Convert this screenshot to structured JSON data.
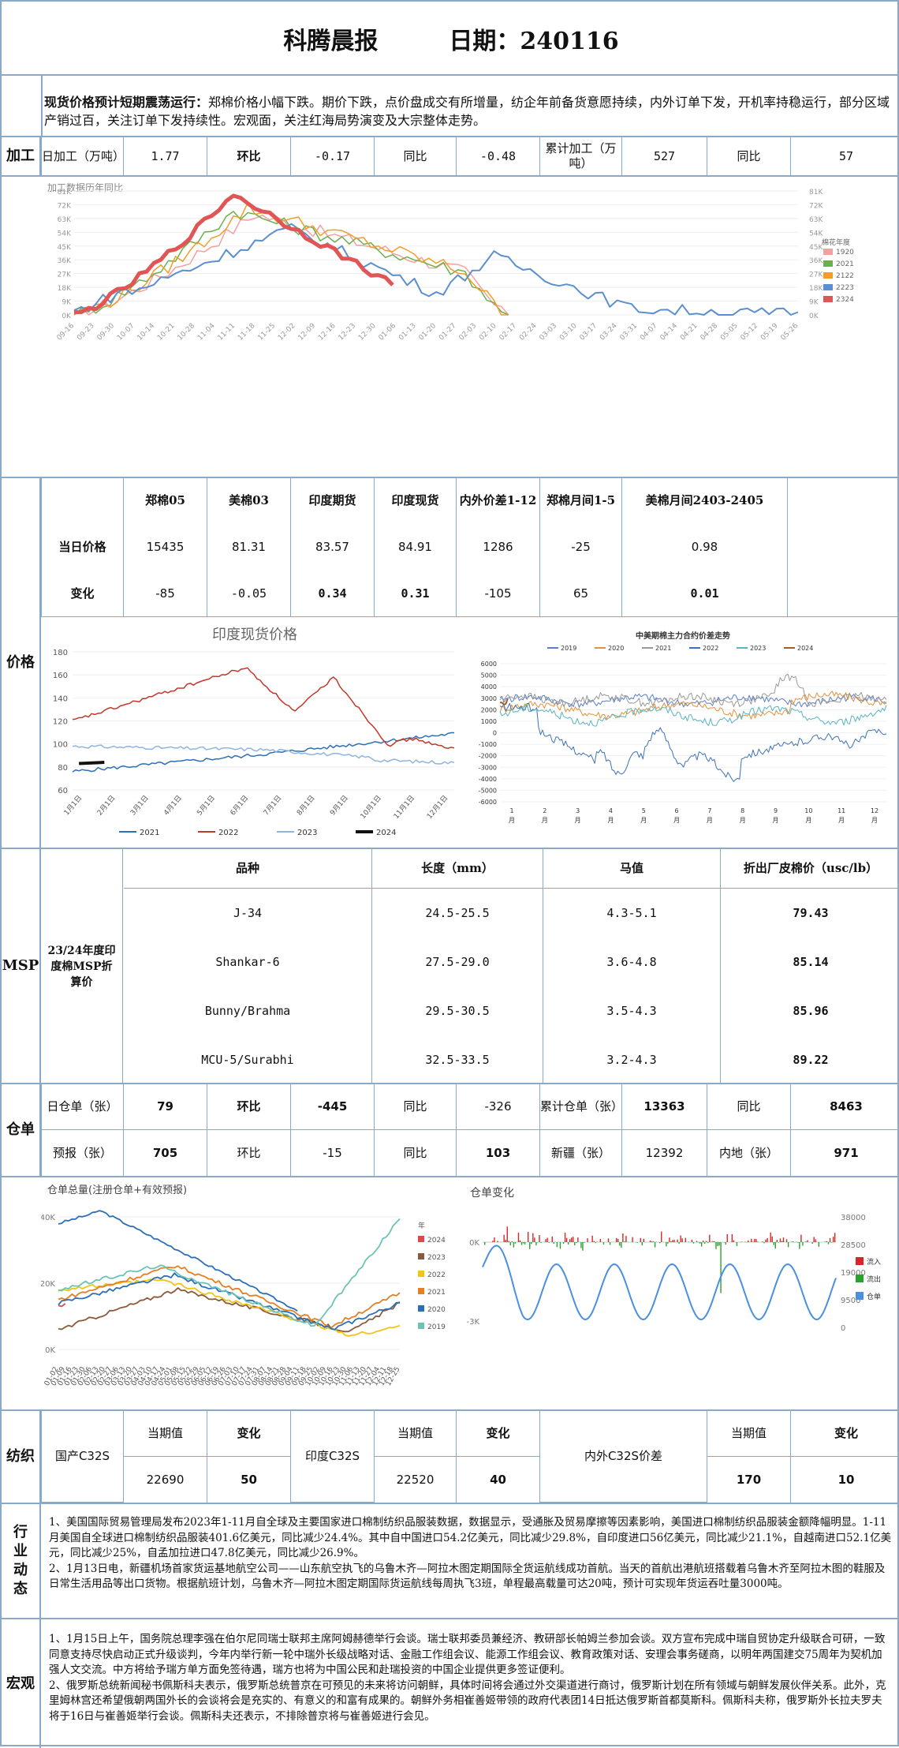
{
  "report": {
    "title": "科腾晨报",
    "date_label": "日期：240116"
  },
  "summary": {
    "bold": "现货价格预计短期震荡运行：",
    "text": "郑棉价格小幅下跌。期价下跌，点价盘成交有所增量，纺企年前备货意愿持续，内外订单下发，开机率持稳运行，部分区域产销过百，关注订单下发持续性。宏观面，关注红海局势演变及大宗整体走势。"
  },
  "processing": {
    "section": "加工",
    "daily_label": "日加工（万吨）",
    "daily_value": "1.77",
    "mom_label": "环比",
    "mom_value": "-0.17",
    "yoy_label": "同比",
    "yoy_value": "-0.48",
    "cum_label": "累计加工（万吨）",
    "cum_value": "527",
    "cum_yoy_label": "同比",
    "cum_yoy_value": "57"
  },
  "processing_chart": {
    "title": "加工数据历年同比",
    "legend_title": "棉花年度",
    "series": [
      {
        "name": "1920",
        "color": "#f4a0a0"
      },
      {
        "name": "2021",
        "color": "#6ab04c"
      },
      {
        "name": "2122",
        "color": "#f39c2b"
      },
      {
        "name": "2223",
        "color": "#5b8fd0"
      },
      {
        "name": "2324",
        "color": "#e05555"
      }
    ],
    "y_ticks": [
      "81K",
      "72K",
      "63K",
      "54K",
      "45K",
      "36K",
      "27K",
      "18K",
      "9K",
      "0K"
    ],
    "x_ticks": [
      "09-16",
      "09-23",
      "09-30",
      "10-07",
      "10-14",
      "10-21",
      "10-28",
      "11-04",
      "11-11",
      "11-18",
      "11-25",
      "12-02",
      "12-09",
      "12-16",
      "12-23",
      "12-30",
      "01-06",
      "01-13",
      "01-20",
      "01-27",
      "02-03",
      "02-10",
      "02-17",
      "02-24",
      "03-03",
      "03-10",
      "03-17",
      "03-24",
      "03-31",
      "04-07",
      "04-14",
      "04-21",
      "04-28",
      "05-05",
      "05-12",
      "05-19",
      "05-26"
    ]
  },
  "price": {
    "section": "价格",
    "headers": [
      "郑棉05",
      "美棉03",
      "印度期货",
      "印度现货",
      "内外价差1-12",
      "郑棉月间1-5",
      "美棉月间2403-2405"
    ],
    "row1_label": "当日价格",
    "row1": [
      "15435",
      "81.31",
      "83.57",
      "84.91",
      "1286",
      "-25",
      "0.98"
    ],
    "row2_label": "变化",
    "row2": [
      "-85",
      "-0.05",
      "0.34",
      "0.31",
      "-105",
      "65",
      "0.01"
    ]
  },
  "india_chart": {
    "title": "印度现货价格",
    "y_ticks": [
      "180",
      "160",
      "140",
      "120",
      "100",
      "80",
      "60"
    ],
    "x_ticks": [
      "1月1日",
      "2月1日",
      "3月1日",
      "4月1日",
      "5月1日",
      "6月1日",
      "7月1日",
      "8月1日",
      "9月1日",
      "10月1日",
      "11月1日",
      "12月1日"
    ],
    "legend": [
      {
        "name": "2021",
        "color": "#2e6fb5"
      },
      {
        "name": "2022",
        "color": "#c0392b"
      },
      {
        "name": "2023",
        "color": "#8fb4e0"
      },
      {
        "name": "2024",
        "color": "#111111"
      }
    ]
  },
  "spread_chart": {
    "title": "中美期棉主力合约价差走势",
    "legend": [
      {
        "name": "2019",
        "color": "#5b7fc7"
      },
      {
        "name": "2020",
        "color": "#e69138"
      },
      {
        "name": "2021",
        "color": "#999999"
      },
      {
        "name": "2022",
        "color": "#3d72b8"
      },
      {
        "name": "2023",
        "color": "#58b4c4"
      },
      {
        "name": "2024",
        "color": "#a65c1e"
      }
    ],
    "y_ticks": [
      "6000",
      "5000",
      "4000",
      "3000",
      "2000",
      "1000",
      "0",
      "-1000",
      "-2000",
      "-3000",
      "-4000",
      "-5000",
      "-6000"
    ],
    "x_ticks": [
      "1月",
      "2月",
      "3月",
      "4月",
      "5月",
      "6月",
      "7月",
      "8月",
      "9月",
      "10月",
      "11月",
      "12月"
    ]
  },
  "msp": {
    "section": "MSP",
    "label": "23/24年度印度棉MSP折算价",
    "headers": [
      "品种",
      "长度（mm）",
      "马值",
      "折出厂皮棉价（usc/lb）"
    ],
    "rows": [
      [
        "J-34",
        "24.5-25.5",
        "4.3-5.1",
        "79.43"
      ],
      [
        "Shankar-6",
        "27.5-29.0",
        "3.6-4.8",
        "85.14"
      ],
      [
        "Bunny/Brahma",
        "29.5-30.5",
        "3.5-4.3",
        "85.96"
      ],
      [
        "MCU-5/Surabhi",
        "32.5-33.5",
        "3.2-4.3",
        "89.22"
      ]
    ]
  },
  "warehouse": {
    "section": "仓单",
    "r1": [
      "日仓单（张）",
      "79",
      "环比",
      "-445",
      "同比",
      "-326",
      "累计仓单（张）",
      "13363",
      "同比",
      "8463"
    ],
    "r2": [
      "预报（张）",
      "705",
      "环比",
      "-15",
      "同比",
      "103",
      "新疆（张）",
      "12392",
      "内地（张）",
      "971"
    ]
  },
  "wh_total_chart": {
    "title": "仓单总量(注册仓单+有效预报)",
    "legend_title": "年",
    "y_ticks": [
      "40K",
      "20K",
      "0K"
    ],
    "legend": [
      {
        "name": "2024",
        "color": "#d94a4a"
      },
      {
        "name": "2023",
        "color": "#8b5a3c"
      },
      {
        "name": "2022",
        "color": "#f0c419"
      },
      {
        "name": "2021",
        "color": "#e67e22"
      },
      {
        "name": "2020",
        "color": "#2c6fb5"
      },
      {
        "name": "2019",
        "color": "#6cc3b5"
      }
    ],
    "x_ticks": [
      "01-02",
      "01-09",
      "01-16",
      "01-23",
      "01-30",
      "02-06",
      "02-13",
      "02-20",
      "02-27",
      "03-06",
      "03-13",
      "03-20",
      "03-27",
      "04-03",
      "04-10",
      "04-17",
      "04-24",
      "05-01",
      "05-08",
      "05-15",
      "05-22",
      "05-29",
      "06-05",
      "06-12",
      "06-19",
      "06-26",
      "07-03",
      "07-10",
      "07-17",
      "07-24",
      "07-31",
      "08-07",
      "08-14",
      "08-21",
      "08-28",
      "09-04",
      "09-11",
      "09-18",
      "09-25",
      "10-02",
      "10-09",
      "10-16",
      "10-23",
      "10-30",
      "11-06",
      "11-13",
      "11-20",
      "11-27",
      "12-04",
      "12-11",
      "12-18",
      "12-25"
    ]
  },
  "wh_change_chart": {
    "title": "仓单变化",
    "left_ticks": [
      "0K",
      "-3K"
    ],
    "right_ticks": [
      "38000",
      "28500",
      "19000",
      "9500",
      "0"
    ],
    "legend": [
      {
        "name": "流入",
        "color": "#d62728"
      },
      {
        "name": "流出",
        "color": "#2ca02c"
      },
      {
        "name": "仓单",
        "color": "#4a8fe0"
      }
    ]
  },
  "yarn": {
    "section": "纺织",
    "col_cur": "当期值",
    "col_chg": "变化",
    "r1_label": "国产C32S",
    "r1_val": "22690",
    "r1_chg": "50",
    "r2_label": "印度C32S",
    "r2_val": "22520",
    "r2_chg": "40",
    "r3_label": "内外C32S价差",
    "r3_val": "170",
    "r3_chg": "10"
  },
  "industry": {
    "section": "行业动态",
    "p1": "1、美国国际贸易管理局发布2023年1-11月自全球及主要国家进口棉制纺织品服装数据，数据显示，受通胀及贸易摩擦等因素影响，美国进口棉制纺织品服装金额降幅明显。1-11月美国自全球进口棉制纺织品服装401.6亿美元，同比减少24.4%。其中自中国进口54.2亿美元，同比减少29.8%，自印度进口56亿美元，同比减少21.1%，自越南进口52.1亿美元，同比减少25%，自孟加拉进口47.8亿美元，同比减少26.9%。",
    "p2": "2、1月13日电，新疆机场首家货运基地航空公司——山东航空执飞的乌鲁木齐—阿拉木图定期国际全货运航线成功首航。当天的首航出港航班搭载着乌鲁木齐至阿拉木图的鞋服及日常生活用品等出口货物。根据航班计划，乌鲁木齐—阿拉木图定期国际货运航线每周执飞3班，单程最高载量可达20吨，预计可实现年货运吞吐量3000吨。"
  },
  "macro": {
    "section": "宏观",
    "p1": "1、1月15日上午，国务院总理李强在伯尔尼同瑞士联邦主席阿姆赫德举行会谈。瑞士联邦委员兼经济、教研部长帕姆兰参加会谈。双方宣布完成中瑞自贸协定升级联合可研，一致同意支持尽快启动正式升级谈判，今年内举行新一轮中瑞外长级战略对话、金融工作组会议、能源工作组会议、教育政策对话、安理会事务磋商，以明年两国建交75周年为契机加强人文交流。中方将给予瑞方单方面免签待遇，瑞方也将为中国公民和赴瑞投资的中国企业提供更多签证便利。",
    "p2": "2、俄罗斯总统新闻秘书佩斯科夫表示，俄罗斯总统普京在可预见的未来将访问朝鲜，具体时间将会通过外交渠道进行商讨，俄罗斯计划在所有领域与朝鲜发展伙伴关系。此外，克里姆林宫还希望俄朝两国外长的会谈将会是充实的、有意义的和富有成果的。朝鲜外务相崔善姬带领的政府代表团14日抵达俄罗斯首都莫斯科。佩斯科夫称，俄罗斯外长拉夫罗夫将于16日与崔善姬举行会谈。佩斯科夫还表示，不排除普京将与崔善姬进行会见。"
  }
}
